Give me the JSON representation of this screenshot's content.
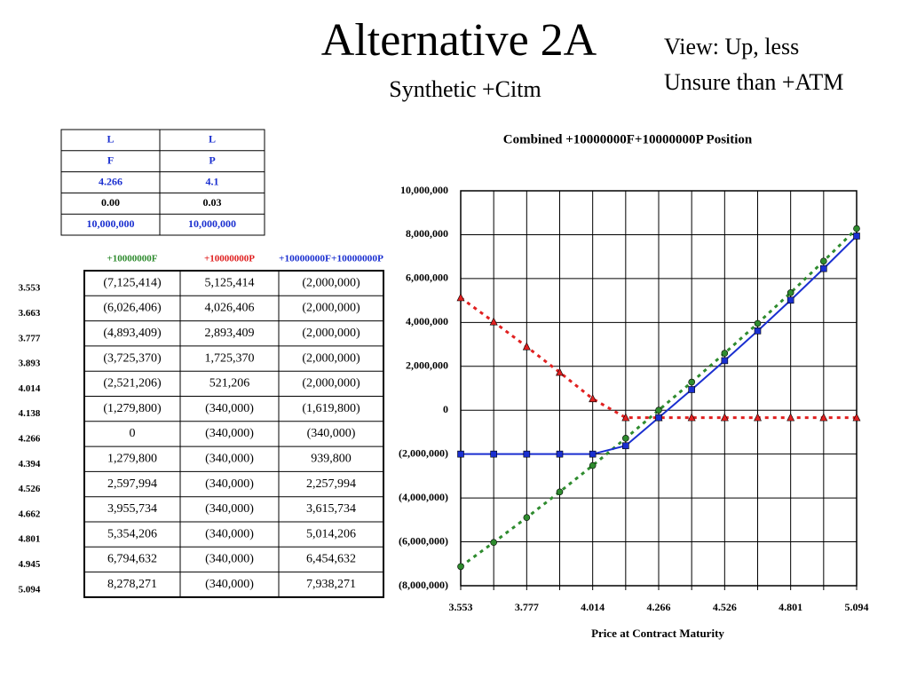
{
  "header": {
    "title": "Alternative 2A",
    "subtitle": "Synthetic +Citm",
    "view": [
      "View: Up, less",
      "Unsure than +ATM"
    ]
  },
  "small_table": {
    "rows": [
      [
        "L",
        "L"
      ],
      [
        "F",
        "P"
      ],
      [
        "4.266",
        "4.1"
      ],
      [
        "0.00",
        "0.03"
      ],
      [
        "10,000,000",
        "10,000,000"
      ]
    ]
  },
  "main_table": {
    "columns": [
      "+10000000F",
      "+10000000P",
      "+10000000F+10000000P"
    ],
    "row_labels": [
      "3.553",
      "3.663",
      "3.777",
      "3.893",
      "4.014",
      "4.138",
      "4.266",
      "4.394",
      "4.526",
      "4.662",
      "4.801",
      "4.945",
      "5.094"
    ],
    "rows": [
      [
        "(7,125,414)",
        "5,125,414",
        "(2,000,000)"
      ],
      [
        "(6,026,406)",
        "4,026,406",
        "(2,000,000)"
      ],
      [
        "(4,893,409)",
        "2,893,409",
        "(2,000,000)"
      ],
      [
        "(3,725,370)",
        "1,725,370",
        "(2,000,000)"
      ],
      [
        "(2,521,206)",
        "521,206",
        "(2,000,000)"
      ],
      [
        "(1,279,800)",
        "(340,000)",
        "(1,619,800)"
      ],
      [
        "0",
        "(340,000)",
        "(340,000)"
      ],
      [
        "1,279,800",
        "(340,000)",
        "939,800"
      ],
      [
        "2,597,994",
        "(340,000)",
        "2,257,994"
      ],
      [
        "3,955,734",
        "(340,000)",
        "3,615,734"
      ],
      [
        "5,354,206",
        "(340,000)",
        "5,014,206"
      ],
      [
        "6,794,632",
        "(340,000)",
        "6,454,632"
      ],
      [
        "8,278,271",
        "(340,000)",
        "7,938,271"
      ]
    ]
  },
  "chart_data": {
    "type": "line",
    "title": "Combined +10000000F+10000000P Position",
    "x_label": "Price at Contract Maturity",
    "categories": [
      "3.553",
      null,
      "3.777",
      null,
      "4.014",
      null,
      "4.266",
      null,
      "4.526",
      null,
      "4.801",
      null,
      "5.094"
    ],
    "series": [
      {
        "color": "#2e8b2e",
        "marker": "circle",
        "dash": true,
        "values": [
          -7125414,
          -6026406,
          -4893409,
          -3725370,
          -2521206,
          -1279800,
          0,
          1279800,
          2597994,
          3955734,
          5354206,
          6794632,
          8278271
        ]
      },
      {
        "color": "#e02020",
        "marker": "triangle",
        "dash": true,
        "values": [
          5125414,
          4026406,
          2893409,
          1725370,
          521206,
          -340000,
          -340000,
          -340000,
          -340000,
          -340000,
          -340000,
          -340000,
          -340000
        ]
      },
      {
        "color": "#1a2fd0",
        "marker": "square",
        "dash": false,
        "values": [
          -2000000,
          -2000000,
          -2000000,
          -2000000,
          -2000000,
          -1619800,
          -340000,
          939800,
          2257994,
          3615734,
          5014206,
          6454632,
          7938271
        ]
      }
    ],
    "ylim": [
      -8000000,
      10000000
    ],
    "yticks": [
      {
        "value": -8000000,
        "label": "(8,000,000)"
      },
      {
        "value": -6000000,
        "label": "(6,000,000)"
      },
      {
        "value": -4000000,
        "label": "(4,000,000)"
      },
      {
        "value": -2000000,
        "label": "(2,000,000)"
      },
      0,
      {
        "value": 2000000,
        "label": "2,000,000"
      },
      {
        "value": 4000000,
        "label": "4,000,000"
      },
      {
        "value": 6000000,
        "label": "6,000,000"
      },
      {
        "value": 8000000,
        "label": "8,000,000"
      },
      {
        "value": 10000000,
        "label": "10,000,000"
      }
    ],
    "grid": true
  }
}
